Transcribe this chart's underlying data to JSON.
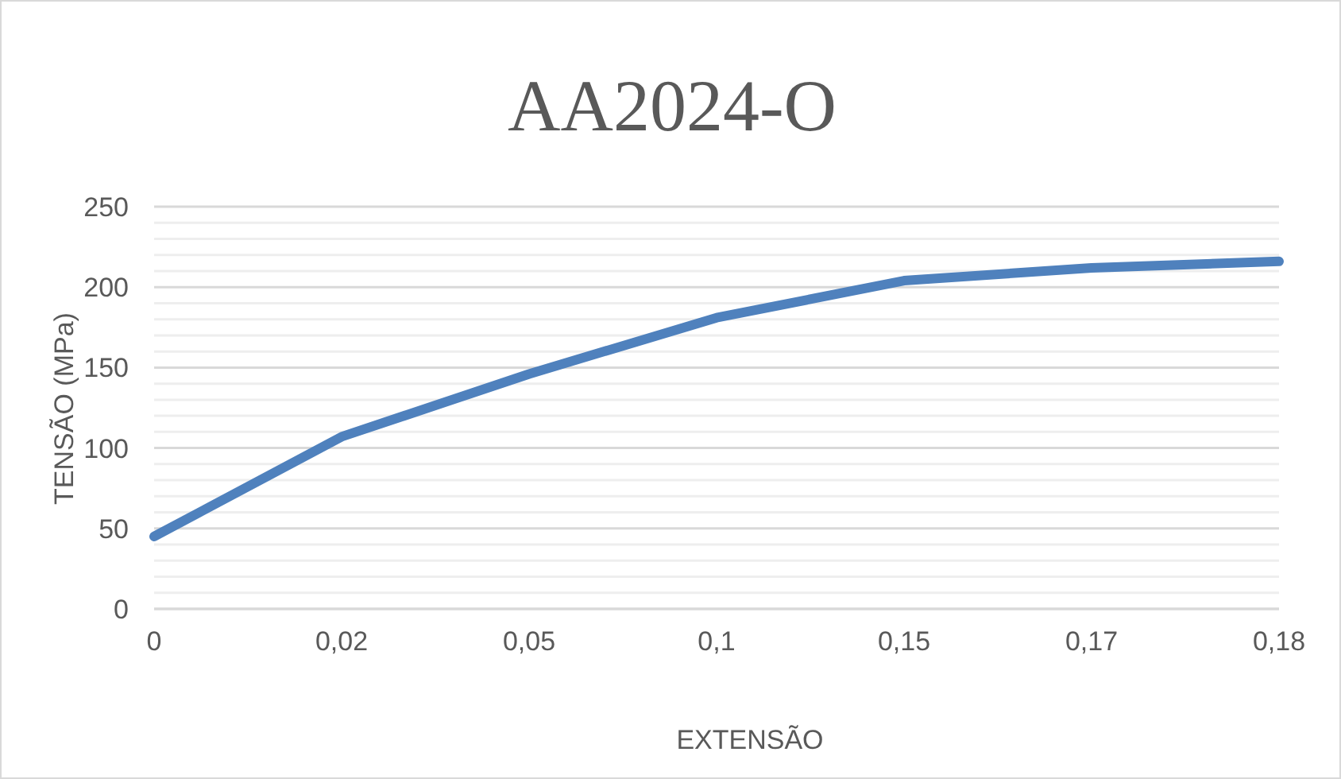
{
  "chart_data": {
    "type": "line",
    "title": "AA2024-O",
    "xlabel": "EXTENSÃO",
    "ylabel": "TENSÃO (MPa)",
    "categories": [
      "0",
      "0,02",
      "0,05",
      "0,1",
      "0,15",
      "0,17",
      "0,18"
    ],
    "series": [
      {
        "color": "#4f81bd",
        "values": [
          45,
          107,
          146,
          181,
          204,
          212,
          216
        ]
      }
    ],
    "ylim": [
      0,
      250
    ],
    "yticks": [
      0,
      {
        "value": 10,
        "label": null
      },
      {
        "value": 20,
        "label": null
      },
      {
        "value": 30,
        "label": null
      },
      {
        "value": 40,
        "label": null
      },
      50,
      {
        "value": 60,
        "label": null
      },
      {
        "value": 70,
        "label": null
      },
      {
        "value": 80,
        "label": null
      },
      {
        "value": 90,
        "label": null
      },
      100,
      {
        "value": 110,
        "label": null
      },
      {
        "value": 120,
        "label": null
      },
      {
        "value": 130,
        "label": null
      },
      {
        "value": 140,
        "label": null
      },
      150,
      {
        "value": 160,
        "label": null
      },
      {
        "value": 170,
        "label": null
      },
      {
        "value": 180,
        "label": null
      },
      {
        "value": 190,
        "label": null
      },
      200,
      {
        "value": 210,
        "label": null
      },
      {
        "value": 220,
        "label": null
      },
      {
        "value": 230,
        "label": null
      },
      {
        "value": 240,
        "label": null
      },
      250
    ],
    "grid": "y",
    "legend": false,
    "marker": "none",
    "line_style": "solid"
  }
}
